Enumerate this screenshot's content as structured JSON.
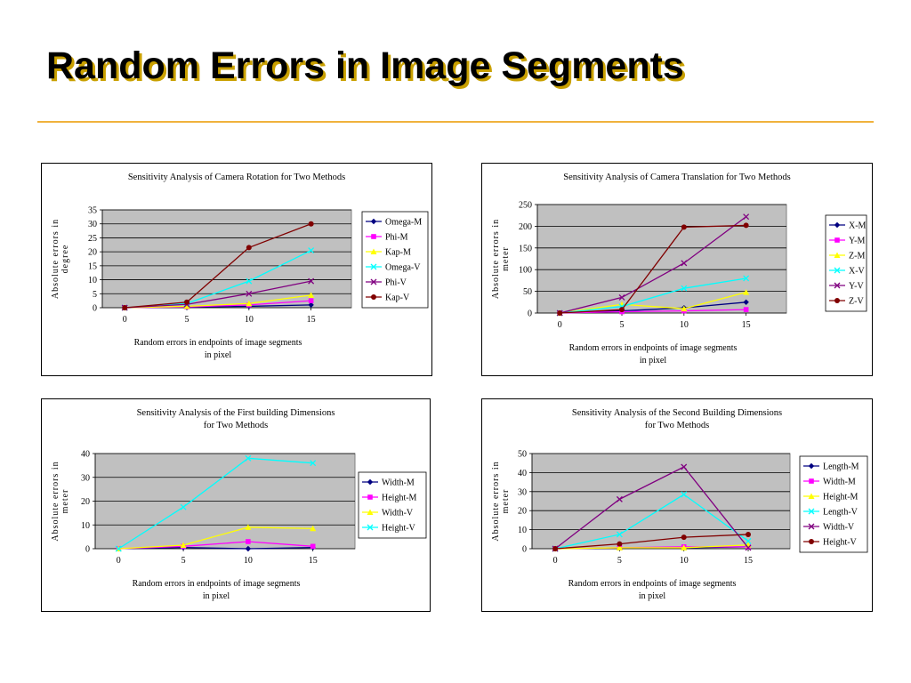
{
  "slide": {
    "title": "Random Errors in Image Segments"
  },
  "colors": {
    "background": "#ffffff",
    "title_shadow": "#c9a000",
    "rule": "#f0b23c",
    "plot_bg": "#c0c0c0"
  },
  "chart_data": [
    {
      "type": "line",
      "title": "Sensitivity Analysis of Camera Rotation for Two Methods",
      "xlabel": "Random errors in endpoints of image segments in pixel",
      "ylabel": "Absolute errors in degree",
      "x": [
        0,
        5,
        10,
        15
      ],
      "ylim": [
        0,
        35
      ],
      "yticks": [
        0,
        5,
        10,
        15,
        20,
        25,
        30,
        35
      ],
      "grid": true,
      "legend": "right",
      "series": [
        {
          "name": "Omega-M",
          "color": "#000080",
          "marker": "diamond",
          "values": [
            0,
            0.2,
            0.5,
            1
          ]
        },
        {
          "name": "Phi-M",
          "color": "#ff00ff",
          "marker": "square",
          "values": [
            0,
            0.3,
            1,
            2.5
          ]
        },
        {
          "name": "Kap-M",
          "color": "#ffff00",
          "marker": "triangle",
          "values": [
            0,
            0.5,
            1.5,
            4.5
          ]
        },
        {
          "name": "Omega-V",
          "color": "#00ffff",
          "marker": "x",
          "values": [
            0,
            1.5,
            9.5,
            20.5
          ]
        },
        {
          "name": "Phi-V",
          "color": "#800080",
          "marker": "x",
          "values": [
            0,
            1.2,
            5,
            9.5
          ]
        },
        {
          "name": "Kap-V",
          "color": "#800000",
          "marker": "circle",
          "values": [
            0,
            2,
            21.5,
            30
          ]
        }
      ]
    },
    {
      "type": "line",
      "title": "Sensitivity Analysis of Camera Translation for Two Methods",
      "xlabel": "Random errors in endpoints of image segments in pixel",
      "ylabel": "Absolute errors in meter",
      "x": [
        0,
        5,
        10,
        15
      ],
      "ylim": [
        0,
        250
      ],
      "yticks": [
        0,
        50,
        100,
        150,
        200,
        250
      ],
      "grid": true,
      "legend": "right",
      "series": [
        {
          "name": "X-M",
          "color": "#000080",
          "marker": "diamond",
          "values": [
            0,
            5,
            12,
            25
          ]
        },
        {
          "name": "Y-M",
          "color": "#ff00ff",
          "marker": "square",
          "values": [
            0,
            3,
            5,
            8
          ]
        },
        {
          "name": "Z-M",
          "color": "#ffff00",
          "marker": "triangle",
          "values": [
            0,
            20,
            10,
            48
          ]
        },
        {
          "name": "X-V",
          "color": "#00ffff",
          "marker": "x",
          "values": [
            0,
            15,
            57,
            80
          ]
        },
        {
          "name": "Y-V",
          "color": "#800080",
          "marker": "x",
          "values": [
            0,
            36,
            115,
            222
          ]
        },
        {
          "name": "Z-V",
          "color": "#800000",
          "marker": "circle",
          "values": [
            0,
            8,
            198,
            202
          ]
        }
      ]
    },
    {
      "type": "line",
      "title": "Sensitivity Analysis of the First building Dimensions for Two Methods",
      "xlabel": "Random errors in endpoints of image segments in pixel",
      "ylabel": "Absolute errors in meter",
      "x": [
        0,
        5,
        10,
        15
      ],
      "ylim": [
        0,
        40
      ],
      "yticks": [
        0,
        10,
        20,
        30,
        40
      ],
      "grid": true,
      "legend": "right",
      "series": [
        {
          "name": "Width-M",
          "color": "#000080",
          "marker": "diamond",
          "values": [
            0,
            0.5,
            0,
            0.5
          ]
        },
        {
          "name": "Height-M",
          "color": "#ff00ff",
          "marker": "square",
          "values": [
            0,
            1,
            3,
            1
          ]
        },
        {
          "name": "Width-V",
          "color": "#ffff00",
          "marker": "triangle",
          "values": [
            0,
            1.5,
            9,
            8.5
          ]
        },
        {
          "name": "Height-V",
          "color": "#00ffff",
          "marker": "x",
          "values": [
            0,
            17.5,
            38,
            36
          ]
        }
      ]
    },
    {
      "type": "line",
      "title": "Sensitivity Analysis of the Second Building Dimensions for Two Methods",
      "xlabel": "Random errors in endpoints of image segments in pixel",
      "ylabel": "Absolute errors in meter",
      "x": [
        0,
        5,
        10,
        15
      ],
      "ylim": [
        0,
        50
      ],
      "yticks": [
        0,
        10,
        20,
        30,
        40,
        50
      ],
      "grid": true,
      "legend": "right",
      "series": [
        {
          "name": "Length-M",
          "color": "#000080",
          "marker": "diamond",
          "values": [
            0,
            0.3,
            0.5,
            1
          ]
        },
        {
          "name": "Width-M",
          "color": "#ff00ff",
          "marker": "square",
          "values": [
            0,
            0.5,
            1,
            1
          ]
        },
        {
          "name": "Height-M",
          "color": "#ffff00",
          "marker": "triangle",
          "values": [
            0,
            0.5,
            0.5,
            2
          ]
        },
        {
          "name": "Length-V",
          "color": "#00ffff",
          "marker": "x",
          "values": [
            0,
            7.5,
            28.5,
            4
          ]
        },
        {
          "name": "Width-V",
          "color": "#800080",
          "marker": "x",
          "values": [
            0,
            26,
            43,
            0.5
          ]
        },
        {
          "name": "Height-V",
          "color": "#800000",
          "marker": "circle",
          "values": [
            0,
            2.5,
            6,
            7.5
          ]
        }
      ]
    }
  ]
}
